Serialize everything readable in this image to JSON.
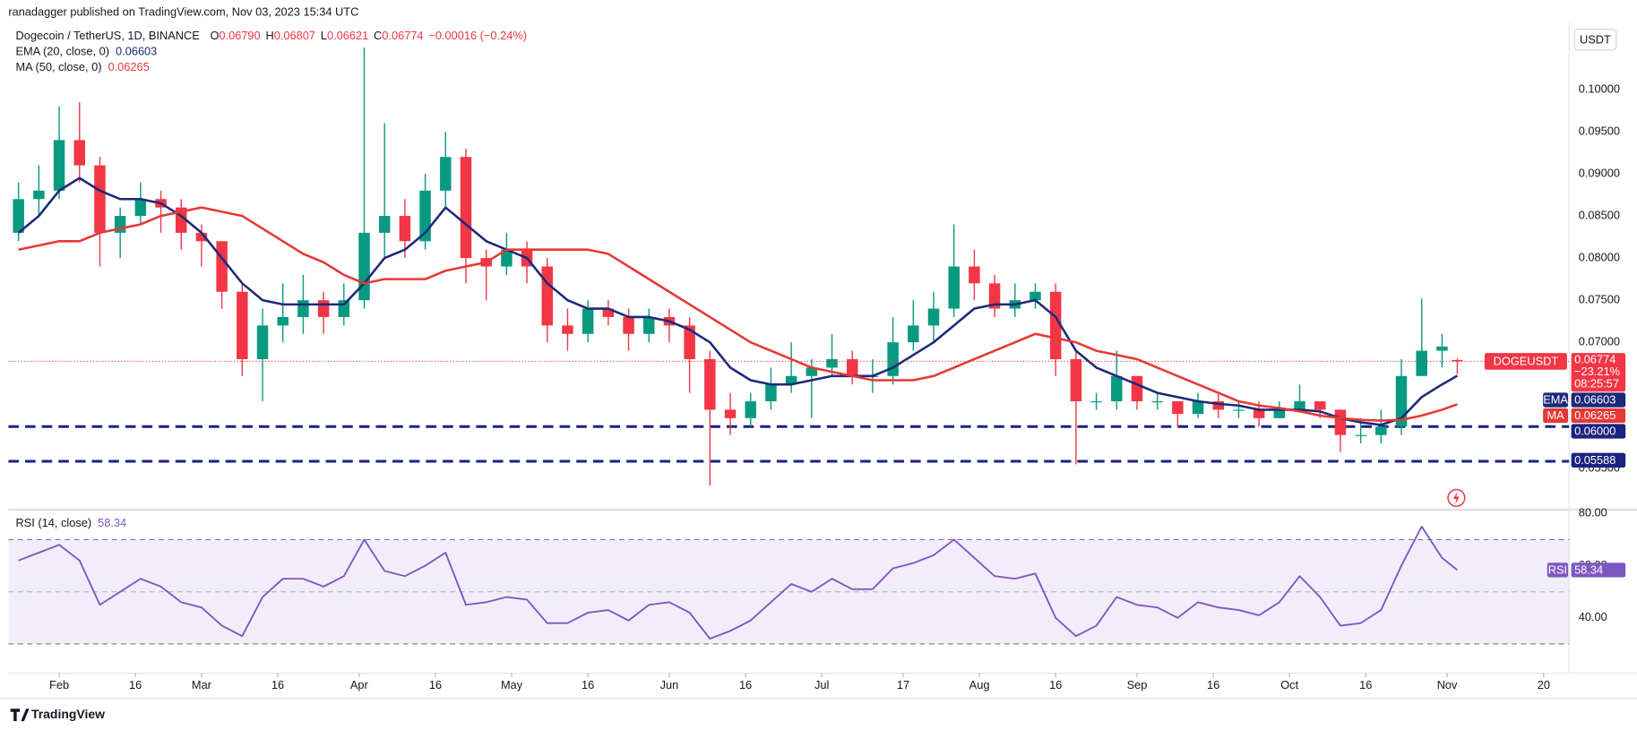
{
  "header": {
    "publisher": "ranadagger published on TradingView.com, Nov 03, 2023 15:34 UTC",
    "footer": "TradingView"
  },
  "chart_data": [
    {
      "type": "candlestick",
      "title": "Dogecoin / TetherUS, 1D, BINANCE",
      "ohlc_legend": [
        {
          "label": "O",
          "value": "0.06790"
        },
        {
          "label": "H",
          "value": "0.06807"
        },
        {
          "label": "L",
          "value": "0.06621"
        },
        {
          "label": "C",
          "value": "0.06774"
        }
      ],
      "change": "−0.00016 (−0.24%)",
      "currency": "USDT",
      "symbol": "DOGEUSDT",
      "price_badge": {
        "change": "−23.21%",
        "countdown": "08:25:57"
      },
      "colors": {
        "up": "#089981",
        "down": "#f23645"
      },
      "x": [
        "2023-01-24",
        "2023-01-28",
        "2023-02-01",
        "2023-02-05",
        "2023-02-09",
        "2023-02-13",
        "2023-02-17",
        "2023-02-21",
        "2023-02-25",
        "2023-03-01",
        "2023-03-05",
        "2023-03-09",
        "2023-03-13",
        "2023-03-17",
        "2023-03-21",
        "2023-03-25",
        "2023-03-29",
        "2023-04-02",
        "2023-04-06",
        "2023-04-10",
        "2023-04-14",
        "2023-04-18",
        "2023-04-22",
        "2023-04-26",
        "2023-04-30",
        "2023-05-04",
        "2023-05-08",
        "2023-05-12",
        "2023-05-16",
        "2023-05-20",
        "2023-05-24",
        "2023-05-28",
        "2023-06-01",
        "2023-06-05",
        "2023-06-09",
        "2023-06-13",
        "2023-06-17",
        "2023-06-21",
        "2023-06-25",
        "2023-06-29",
        "2023-07-03",
        "2023-07-07",
        "2023-07-11",
        "2023-07-15",
        "2023-07-19",
        "2023-07-23",
        "2023-07-27",
        "2023-07-31",
        "2023-08-04",
        "2023-08-08",
        "2023-08-12",
        "2023-08-16",
        "2023-08-20",
        "2023-08-24",
        "2023-08-28",
        "2023-09-01",
        "2023-09-05",
        "2023-09-09",
        "2023-09-13",
        "2023-09-17",
        "2023-09-21",
        "2023-09-25",
        "2023-09-29",
        "2023-10-03",
        "2023-10-07",
        "2023-10-11",
        "2023-10-15",
        "2023-10-19",
        "2023-10-23",
        "2023-10-27",
        "2023-10-31",
        "2023-11-03"
      ],
      "open": [
        0.083,
        0.087,
        0.088,
        0.094,
        0.091,
        0.083,
        0.085,
        0.087,
        0.086,
        0.083,
        0.082,
        0.076,
        0.068,
        0.072,
        0.073,
        0.075,
        0.073,
        0.075,
        0.083,
        0.085,
        0.082,
        0.088,
        0.092,
        0.08,
        0.079,
        0.081,
        0.079,
        0.072,
        0.071,
        0.074,
        0.073,
        0.071,
        0.073,
        0.072,
        0.068,
        0.062,
        0.061,
        0.063,
        0.065,
        0.066,
        0.067,
        0.068,
        0.066,
        0.066,
        0.07,
        0.072,
        0.074,
        0.079,
        0.077,
        0.074,
        0.075,
        0.076,
        0.068,
        0.063,
        0.063,
        0.066,
        0.063,
        0.063,
        0.0615,
        0.063,
        0.062,
        0.062,
        0.061,
        0.062,
        0.063,
        0.062,
        0.059,
        0.059,
        0.06,
        0.066,
        0.069,
        0.0679
      ],
      "high": [
        0.089,
        0.091,
        0.098,
        0.0985,
        0.092,
        0.086,
        0.089,
        0.088,
        0.087,
        0.084,
        0.082,
        0.077,
        0.074,
        0.077,
        0.078,
        0.076,
        0.077,
        0.105,
        0.096,
        0.087,
        0.09,
        0.095,
        0.093,
        0.081,
        0.083,
        0.082,
        0.08,
        0.074,
        0.075,
        0.075,
        0.074,
        0.074,
        0.074,
        0.073,
        0.069,
        0.064,
        0.064,
        0.067,
        0.07,
        0.068,
        0.071,
        0.069,
        0.068,
        0.073,
        0.075,
        0.076,
        0.084,
        0.081,
        0.078,
        0.077,
        0.077,
        0.077,
        0.069,
        0.064,
        0.069,
        0.066,
        0.064,
        0.063,
        0.064,
        0.064,
        0.063,
        0.063,
        0.063,
        0.065,
        0.063,
        0.062,
        0.061,
        0.062,
        0.068,
        0.0752,
        0.071,
        0.06807
      ],
      "low": [
        0.082,
        0.085,
        0.087,
        0.089,
        0.079,
        0.08,
        0.084,
        0.083,
        0.081,
        0.079,
        0.074,
        0.066,
        0.063,
        0.07,
        0.071,
        0.071,
        0.072,
        0.074,
        0.08,
        0.08,
        0.081,
        0.086,
        0.077,
        0.075,
        0.078,
        0.077,
        0.07,
        0.069,
        0.07,
        0.072,
        0.069,
        0.07,
        0.07,
        0.064,
        0.053,
        0.059,
        0.06,
        0.062,
        0.064,
        0.061,
        0.066,
        0.065,
        0.064,
        0.065,
        0.069,
        0.07,
        0.073,
        0.075,
        0.073,
        0.073,
        0.074,
        0.066,
        0.0555,
        0.062,
        0.062,
        0.062,
        0.062,
        0.06,
        0.061,
        0.061,
        0.061,
        0.06,
        0.061,
        0.062,
        0.061,
        0.057,
        0.058,
        0.058,
        0.059,
        0.066,
        0.067,
        0.06621
      ],
      "close": [
        0.087,
        0.088,
        0.094,
        0.091,
        0.083,
        0.085,
        0.087,
        0.086,
        0.083,
        0.082,
        0.076,
        0.068,
        0.072,
        0.073,
        0.075,
        0.073,
        0.075,
        0.083,
        0.085,
        0.082,
        0.088,
        0.092,
        0.08,
        0.079,
        0.081,
        0.079,
        0.072,
        0.071,
        0.074,
        0.073,
        0.071,
        0.073,
        0.072,
        0.068,
        0.062,
        0.061,
        0.063,
        0.065,
        0.066,
        0.067,
        0.068,
        0.066,
        0.066,
        0.07,
        0.072,
        0.074,
        0.079,
        0.077,
        0.074,
        0.075,
        0.076,
        0.068,
        0.063,
        0.063,
        0.066,
        0.063,
        0.063,
        0.0615,
        0.063,
        0.062,
        0.062,
        0.061,
        0.062,
        0.063,
        0.062,
        0.059,
        0.059,
        0.06,
        0.066,
        0.069,
        0.0695,
        0.06774
      ],
      "series": [
        {
          "name": "EMA (20, close, 0)",
          "short": "EMA",
          "color": "#1e2a78",
          "values": [
            0.083,
            0.085,
            0.088,
            0.0895,
            0.088,
            0.087,
            0.087,
            0.0865,
            0.085,
            0.083,
            0.08,
            0.077,
            0.075,
            0.0745,
            0.0745,
            0.0745,
            0.0745,
            0.077,
            0.08,
            0.081,
            0.083,
            0.086,
            0.084,
            0.082,
            0.081,
            0.08,
            0.077,
            0.075,
            0.074,
            0.074,
            0.073,
            0.073,
            0.0725,
            0.0715,
            0.07,
            0.067,
            0.0655,
            0.065,
            0.065,
            0.0655,
            0.066,
            0.066,
            0.066,
            0.067,
            0.0685,
            0.07,
            0.072,
            0.074,
            0.0745,
            0.0745,
            0.075,
            0.073,
            0.069,
            0.067,
            0.066,
            0.065,
            0.064,
            0.0635,
            0.063,
            0.0627,
            0.0625,
            0.062,
            0.062,
            0.062,
            0.0618,
            0.061,
            0.0605,
            0.0602,
            0.061,
            0.0635,
            0.065,
            0.06603
          ]
        },
        {
          "name": "MA (50, close, 0)",
          "short": "MA",
          "color": "#e53935",
          "values": [
            0.081,
            0.0815,
            0.082,
            0.082,
            0.083,
            0.0835,
            0.084,
            0.085,
            0.0855,
            0.086,
            0.0855,
            0.085,
            0.0835,
            0.082,
            0.0805,
            0.0795,
            0.078,
            0.077,
            0.0775,
            0.0775,
            0.0775,
            0.0785,
            0.079,
            0.0795,
            0.081,
            0.081,
            0.081,
            0.081,
            0.081,
            0.0805,
            0.079,
            0.0775,
            0.076,
            0.0745,
            0.073,
            0.0715,
            0.07,
            0.069,
            0.068,
            0.067,
            0.0665,
            0.066,
            0.0655,
            0.0655,
            0.0655,
            0.066,
            0.067,
            0.068,
            0.069,
            0.07,
            0.071,
            0.0705,
            0.07,
            0.069,
            0.0685,
            0.068,
            0.067,
            0.066,
            0.065,
            0.064,
            0.063,
            0.0625,
            0.0622,
            0.0618,
            0.0613,
            0.061,
            0.0608,
            0.0607,
            0.0608,
            0.0613,
            0.062,
            0.06265
          ]
        }
      ],
      "levels": [
        {
          "value": 0.06,
          "label": "0.06000"
        },
        {
          "value": 0.05588,
          "label": "0.05588"
        }
      ],
      "level_color": "#1a237e",
      "xlim": [
        "2023-01-22",
        "2023-11-25"
      ],
      "xticks": [
        {
          "value": "2023-02-01",
          "label": "Feb"
        },
        {
          "value": "2023-02-16",
          "label": "16"
        },
        {
          "value": "2023-03-01",
          "label": "Mar"
        },
        {
          "value": "2023-03-16",
          "label": "16"
        },
        {
          "value": "2023-04-01",
          "label": "Apr"
        },
        {
          "value": "2023-04-16",
          "label": "16"
        },
        {
          "value": "2023-05-01",
          "label": "May"
        },
        {
          "value": "2023-05-16",
          "label": "16"
        },
        {
          "value": "2023-06-01",
          "label": "Jun"
        },
        {
          "value": "2023-06-16",
          "label": "16"
        },
        {
          "value": "2023-07-01",
          "label": "Jul"
        },
        {
          "value": "2023-07-17",
          "label": "17"
        },
        {
          "value": "2023-08-01",
          "label": "Aug"
        },
        {
          "value": "2023-08-16",
          "label": "16"
        },
        {
          "value": "2023-09-01",
          "label": "Sep"
        },
        {
          "value": "2023-09-16",
          "label": "16"
        },
        {
          "value": "2023-10-01",
          "label": "Oct"
        },
        {
          "value": "2023-10-16",
          "label": "16"
        },
        {
          "value": "2023-11-01",
          "label": "Nov"
        },
        {
          "value": "2023-11-20",
          "label": "20"
        }
      ],
      "ylim": [
        0.0503,
        0.1079
      ],
      "yticks": [
        {
          "value": 0.055,
          "label": "0.05500"
        },
        {
          "value": 0.07,
          "label": "0.07000"
        },
        {
          "value": 0.075,
          "label": "0.07500"
        },
        {
          "value": 0.08,
          "label": "0.08000"
        },
        {
          "value": 0.085,
          "label": "0.08500"
        },
        {
          "value": 0.09,
          "label": "0.09000"
        },
        {
          "value": 0.095,
          "label": "0.09500"
        },
        {
          "value": 0.1,
          "label": "0.10000"
        }
      ]
    },
    {
      "type": "line",
      "title": "RSI (14, close)",
      "series": [
        {
          "name": "RSI",
          "color": "#7e57c2",
          "values": [
            62,
            65,
            68,
            62,
            45,
            50,
            55,
            52,
            46,
            44,
            37,
            33,
            48,
            55,
            55,
            52,
            56,
            70,
            58,
            56,
            60,
            65,
            45,
            46,
            48,
            47,
            38,
            38,
            42,
            43,
            39,
            45,
            46,
            42,
            32,
            35,
            39,
            46,
            53,
            50,
            55,
            51,
            51,
            59,
            61,
            64,
            70,
            63,
            56,
            55,
            57,
            40,
            33,
            37,
            48,
            45,
            44,
            40,
            46,
            44,
            43,
            41,
            46,
            56,
            48,
            37,
            38,
            43,
            60,
            75,
            63,
            58.34
          ]
        }
      ],
      "band": [
        30,
        70
      ],
      "midline": 50,
      "ylim": [
        20.8,
        80.8
      ],
      "yticks": [
        {
          "value": 40,
          "label": "40.00"
        },
        {
          "value": 60,
          "label": "60.00"
        },
        {
          "value": 80,
          "label": "80.00"
        }
      ]
    }
  ]
}
